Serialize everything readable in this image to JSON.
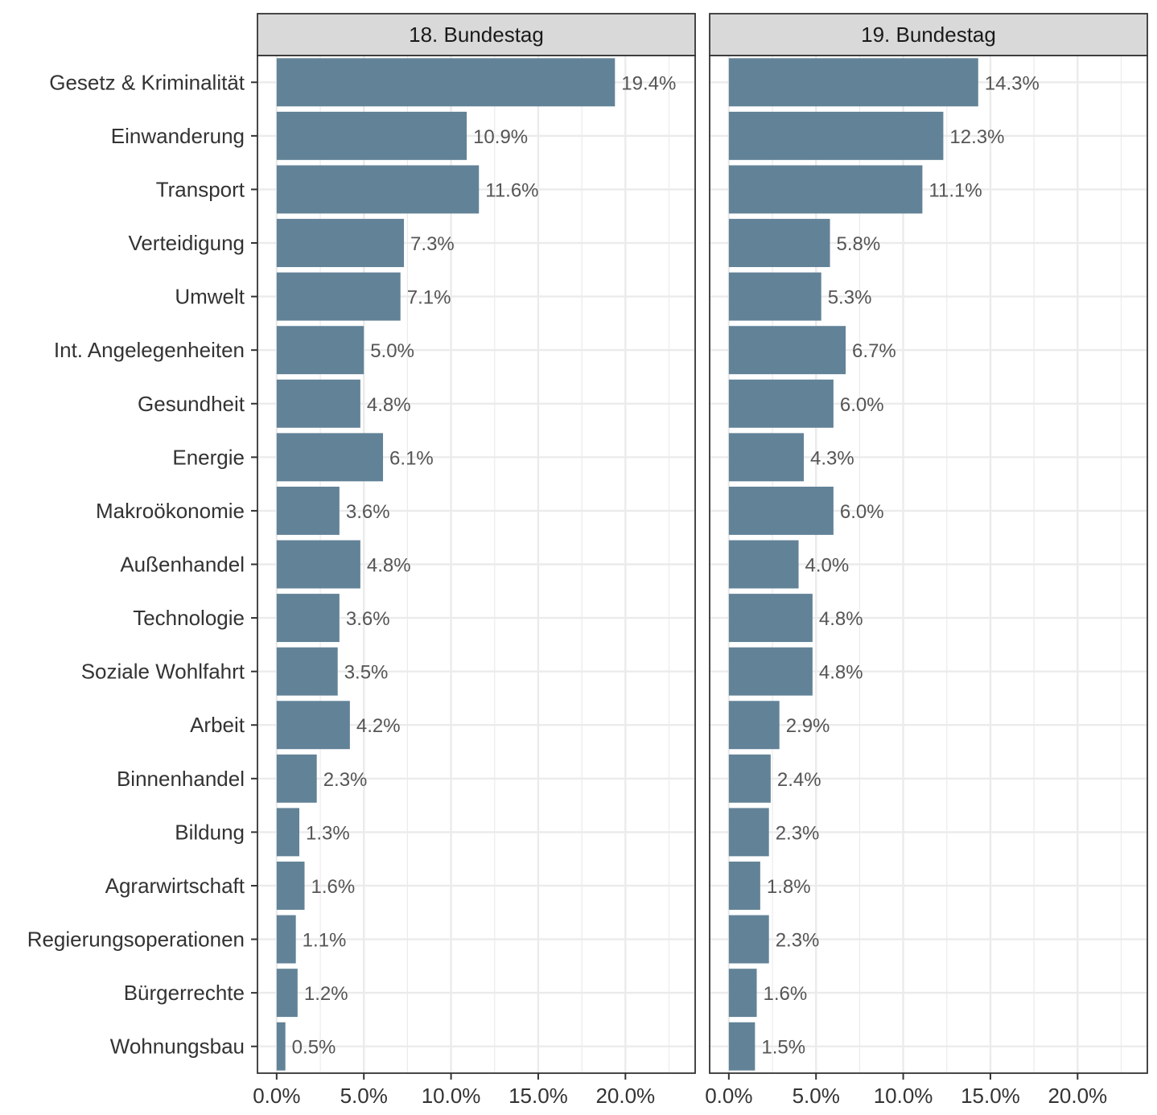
{
  "chart_data": {
    "type": "bar",
    "orientation": "horizontal",
    "categories": [
      "Gesetz & Kriminalität",
      "Einwanderung",
      "Transport",
      "Verteidigung",
      "Umwelt",
      "Int. Angelegenheiten",
      "Gesundheit",
      "Energie",
      "Makroökonomie",
      "Außenhandel",
      "Technologie",
      "Soziale Wohlfahrt",
      "Arbeit",
      "Binnenhandel",
      "Bildung",
      "Agrarwirtschaft",
      "Regierungsoperationen",
      "Bürgerrechte",
      "Wohnungsbau"
    ],
    "panels": [
      {
        "name": "18. Bundestag",
        "values": [
          19.4,
          10.9,
          11.6,
          7.3,
          7.1,
          5.0,
          4.8,
          6.1,
          3.6,
          4.8,
          3.6,
          3.5,
          4.2,
          2.3,
          1.3,
          1.6,
          1.1,
          1.2,
          0.5
        ],
        "labels": [
          "19.4%",
          "10.9%",
          "11.6%",
          "7.3%",
          "7.1%",
          "5.0%",
          "4.8%",
          "6.1%",
          "3.6%",
          "4.8%",
          "3.6%",
          "3.5%",
          "4.2%",
          "2.3%",
          "1.3%",
          "1.6%",
          "1.1%",
          "1.2%",
          "0.5%"
        ]
      },
      {
        "name": "19. Bundestag",
        "values": [
          14.3,
          12.3,
          11.1,
          5.8,
          5.3,
          6.7,
          6.0,
          4.3,
          6.0,
          4.0,
          4.8,
          4.8,
          2.9,
          2.4,
          2.3,
          1.8,
          2.3,
          1.6,
          1.5
        ],
        "labels": [
          "14.3%",
          "12.3%",
          "11.1%",
          "5.8%",
          "5.3%",
          "6.7%",
          "6.0%",
          "4.3%",
          "6.0%",
          "4.0%",
          "4.8%",
          "4.8%",
          "2.9%",
          "2.4%",
          "2.3%",
          "1.8%",
          "2.3%",
          "1.6%",
          "1.5%"
        ]
      }
    ],
    "x_ticks": [
      0,
      5,
      10,
      15,
      20
    ],
    "x_tick_labels": [
      "0.0%",
      "5.0%",
      "10.0%",
      "15.0%",
      "20.0%"
    ],
    "xlim": [
      -1.1,
      24
    ],
    "xlabel": "",
    "ylabel": "",
    "grid": true,
    "colors": {
      "bar": "#5f7f95",
      "strip_fill": "#d9d9d9",
      "grid": "#ebebeb",
      "panel_border": "#333333"
    }
  }
}
